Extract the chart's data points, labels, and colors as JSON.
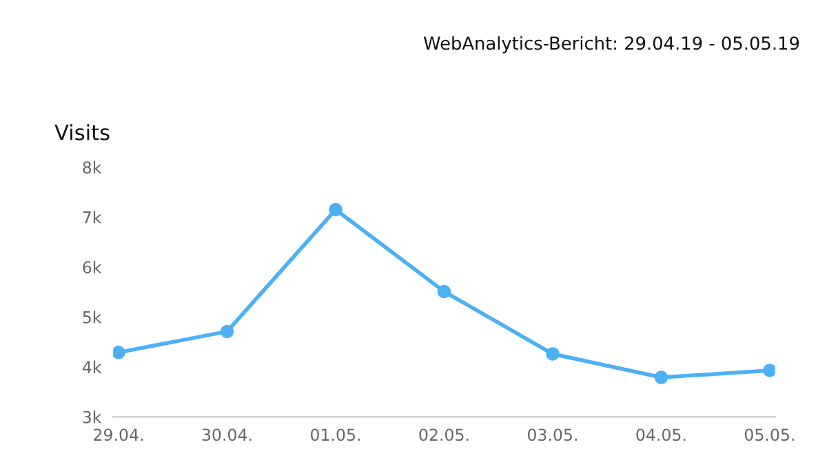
{
  "chart_data": {
    "type": "line",
    "title": "WebAnalytics-Bericht: 29.04.19 - 05.05.19",
    "subtitle": "Visits",
    "categories": [
      "29.04.",
      "30.04.",
      "01.05.",
      "02.05.",
      "03.05.",
      "04.05.",
      "05.05."
    ],
    "series": [
      {
        "color": "#4db0f5",
        "values": [
          4290,
          4710,
          7150,
          5510,
          4260,
          3790,
          3930
        ]
      }
    ],
    "ylim": [
      3000,
      8000
    ],
    "yticks": [
      {
        "value": 3000,
        "label": "3k"
      },
      {
        "value": 4000,
        "label": "4k"
      },
      {
        "value": 5000,
        "label": "5k"
      },
      {
        "value": 6000,
        "label": "6k"
      },
      {
        "value": 7000,
        "label": "7k"
      },
      {
        "value": 8000,
        "label": "8k"
      }
    ],
    "grid": false,
    "marker": "circle",
    "line_style": "solid"
  }
}
